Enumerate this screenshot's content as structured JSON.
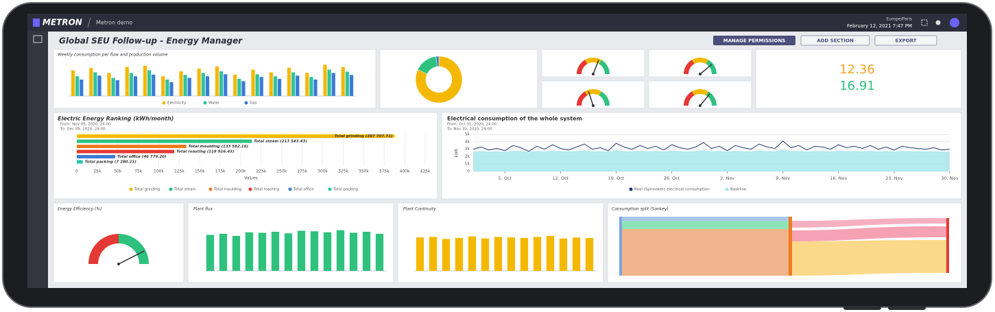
{
  "header": {
    "logo": "METRON",
    "workspace": "Metron demo",
    "timezone": "Europe/Paris",
    "datetime": "February 12, 2021 7:47 PM"
  },
  "toolbar": {
    "title": "Global SEU Follow-up - Energy Manager",
    "buttons": [
      "MANAGE PERMISSIONS",
      "ADD SECTION",
      "EXPORT"
    ]
  },
  "kpi": {
    "values": [
      12.36,
      16.91
    ],
    "colors": [
      "#f5a623",
      "#2ec27e"
    ]
  },
  "sankey": {
    "title": "Consumption split (Sankey)"
  },
  "chart_data": [
    {
      "type": "bar",
      "title": "Weekly consumption per flow and production volume",
      "ylim": [
        0,
        100
      ],
      "series": [
        {
          "name": "Electricity",
          "color": "#f5b800",
          "values": [
            78,
            85,
            70,
            88,
            92,
            60,
            75,
            83,
            90,
            65,
            80,
            72,
            86,
            70,
            95,
            88
          ]
        },
        {
          "name": "Water",
          "color": "#2ec4a0",
          "values": [
            60,
            72,
            55,
            70,
            78,
            50,
            64,
            70,
            75,
            52,
            66,
            60,
            72,
            58,
            80,
            74
          ]
        },
        {
          "name": "Gas",
          "color": "#3a7bd5",
          "values": [
            50,
            62,
            48,
            60,
            65,
            42,
            55,
            60,
            66,
            45,
            58,
            52,
            62,
            50,
            70,
            64
          ]
        }
      ]
    },
    {
      "type": "pie",
      "values": [
        82,
        16,
        2
      ],
      "colors": [
        "#f5b800",
        "#2ec27e",
        "#3a7bd5"
      ]
    },
    {
      "type": "gauge",
      "values": [
        62,
        78,
        40,
        72
      ],
      "ylim": [
        0,
        100
      ],
      "colors": [
        "#e53935",
        "#f5b800",
        "#2ec27e"
      ]
    },
    {
      "type": "hbar",
      "title": "Electric Energy Ranking (kWh/month)",
      "subtitle": [
        "From: Nov 09, 2020, 24:00",
        "To: Dec 09, 2020, 24:00"
      ],
      "categories": [
        "Total grinding",
        "Total steam",
        "Total moulding",
        "Total roasting",
        "Total office",
        "Total packing"
      ],
      "values": [
        387707.71,
        213543.43,
        133582.16,
        118916.43,
        46779.2,
        7280.21
      ],
      "value_labels": [
        "Total grinding (387 707.71)",
        "Total steam (213 543.43)",
        "Total moulding (133 582.16)",
        "Total roasting (118 916.43)",
        "Total office (46 779.20)",
        "Total packing (7 280.21)"
      ],
      "colors": [
        "#f5b800",
        "#2ec27e",
        "#f07b1d",
        "#e53935",
        "#3a7bd5",
        "#26c6a9"
      ],
      "xlabel": "Values",
      "xlim": [
        0,
        425000
      ],
      "xticks": [
        0,
        {
          "value": 25000,
          "label": "25k"
        },
        {
          "value": 50000,
          "label": "50k"
        },
        {
          "value": 75000,
          "label": "75k"
        },
        {
          "value": 100000,
          "label": "100k"
        },
        {
          "value": 125000,
          "label": "125k"
        },
        {
          "value": 150000,
          "label": "150k"
        },
        {
          "value": 175000,
          "label": "175k"
        },
        {
          "value": 200000,
          "label": "200k"
        },
        {
          "value": 225000,
          "label": "225k"
        },
        {
          "value": 250000,
          "label": "250k"
        },
        {
          "value": 275000,
          "label": "275k"
        },
        {
          "value": 300000,
          "label": "300k"
        },
        {
          "value": 325000,
          "label": "325k"
        },
        {
          "value": 350000,
          "label": "350k"
        },
        {
          "value": 375000,
          "label": "375k"
        },
        {
          "value": 400000,
          "label": "400k"
        },
        {
          "value": 425000,
          "label": "425k"
        }
      ]
    },
    {
      "type": "line",
      "title": "Electrical consumption of the whole system",
      "subtitle": [
        "From: Oct 01, 2020, 24:00",
        "To: Nov 30, 2020, 24:00"
      ],
      "ylabel": "kWh",
      "xlim": [
        0,
        60
      ],
      "ylim": [
        0,
        5000
      ],
      "yticks": [
        0,
        {
          "value": 1000,
          "label": "1k"
        },
        {
          "value": 2000,
          "label": "2k"
        },
        {
          "value": 3000,
          "label": "3k"
        },
        {
          "value": 4000,
          "label": "4k"
        },
        {
          "value": 5000,
          "label": "5k"
        }
      ],
      "xticks": [
        {
          "value": 4,
          "label": "5. Oct"
        },
        {
          "value": 11,
          "label": "12. Oct"
        },
        {
          "value": 18,
          "label": "19. Oct"
        },
        {
          "value": 25,
          "label": "26. Oct"
        },
        {
          "value": 32,
          "label": "2. Nov"
        },
        {
          "value": 39,
          "label": "9. Nov"
        },
        {
          "value": 46,
          "label": "16. Nov"
        },
        {
          "value": 53,
          "label": "23. Nov"
        },
        {
          "value": 60,
          "label": "30. Nov"
        }
      ],
      "x": [
        0,
        1,
        2,
        3,
        4,
        5,
        6,
        7,
        8,
        9,
        10,
        11,
        12,
        13,
        14,
        15,
        16,
        17,
        18,
        19,
        20,
        21,
        22,
        23,
        24,
        25,
        26,
        27,
        28,
        29,
        30,
        31,
        32,
        33,
        34,
        35,
        36,
        37,
        38,
        39,
        40,
        41,
        42,
        43,
        44,
        45,
        46,
        47,
        48,
        49,
        50,
        51,
        52,
        53,
        54,
        55,
        56,
        57,
        58,
        59,
        60
      ],
      "series": [
        {
          "name": "Baseline",
          "color": "#a8e6ec",
          "values": [
            2700,
            2750,
            2680,
            2720,
            2650,
            2800,
            2760,
            2640,
            2780,
            2700,
            2820,
            2740,
            2690,
            2760,
            2850,
            2710,
            2740,
            2660,
            2880,
            2760,
            2700,
            2800,
            2720,
            2780,
            2680,
            2820,
            2750,
            2700,
            2760,
            2900,
            2720,
            2780,
            2660,
            2800,
            2740,
            2700,
            2840,
            2760,
            2720,
            2950,
            2740,
            2800,
            2680,
            2780,
            2760,
            2700,
            2820,
            2740,
            2780,
            2720,
            2800,
            2700,
            2760,
            2680,
            2780,
            2740,
            2720,
            2700,
            2740,
            2680,
            2700
          ]
        },
        {
          "name": "Real (Spinnaker) electrical consumption",
          "color": "#1f3b73",
          "values": [
            3000,
            3300,
            2900,
            3100,
            2800,
            3500,
            3200,
            2700,
            3400,
            3000,
            3600,
            3100,
            2900,
            3300,
            3700,
            3000,
            3200,
            2800,
            3800,
            3300,
            3000,
            3500,
            3100,
            3400,
            2900,
            3600,
            3200,
            3000,
            3300,
            3900,
            3100,
            3400,
            2800,
            3500,
            3200,
            3000,
            3700,
            3300,
            3100,
            4100,
            3200,
            3500,
            2900,
            3400,
            3300,
            3000,
            3600,
            3200,
            3400,
            3100,
            3500,
            3000,
            3300,
            2900,
            3400,
            3200,
            3100,
            3000,
            3200,
            2900,
            3000
          ]
        }
      ]
    },
    {
      "type": "gauge",
      "title": "Energy Efficiency (%)",
      "values": [
        85
      ],
      "ylim": [
        0,
        100
      ],
      "colors": [
        "#e53935",
        "#2ec27e"
      ]
    },
    {
      "type": "bar",
      "title": "Plant flux",
      "ylim": [
        0,
        100
      ],
      "series": [
        {
          "color": "#2ec27e",
          "values": [
            70,
            72,
            68,
            75,
            74,
            76,
            73,
            78,
            77,
            75,
            79,
            74,
            76,
            72
          ]
        }
      ]
    },
    {
      "type": "bar",
      "title": "Plant Continuity",
      "ylim": [
        0,
        100
      ],
      "series": [
        {
          "color": "#f5b800",
          "values": [
            65,
            66,
            62,
            64,
            67,
            63,
            66,
            65,
            64,
            66,
            68,
            63,
            65,
            64
          ]
        }
      ]
    }
  ]
}
